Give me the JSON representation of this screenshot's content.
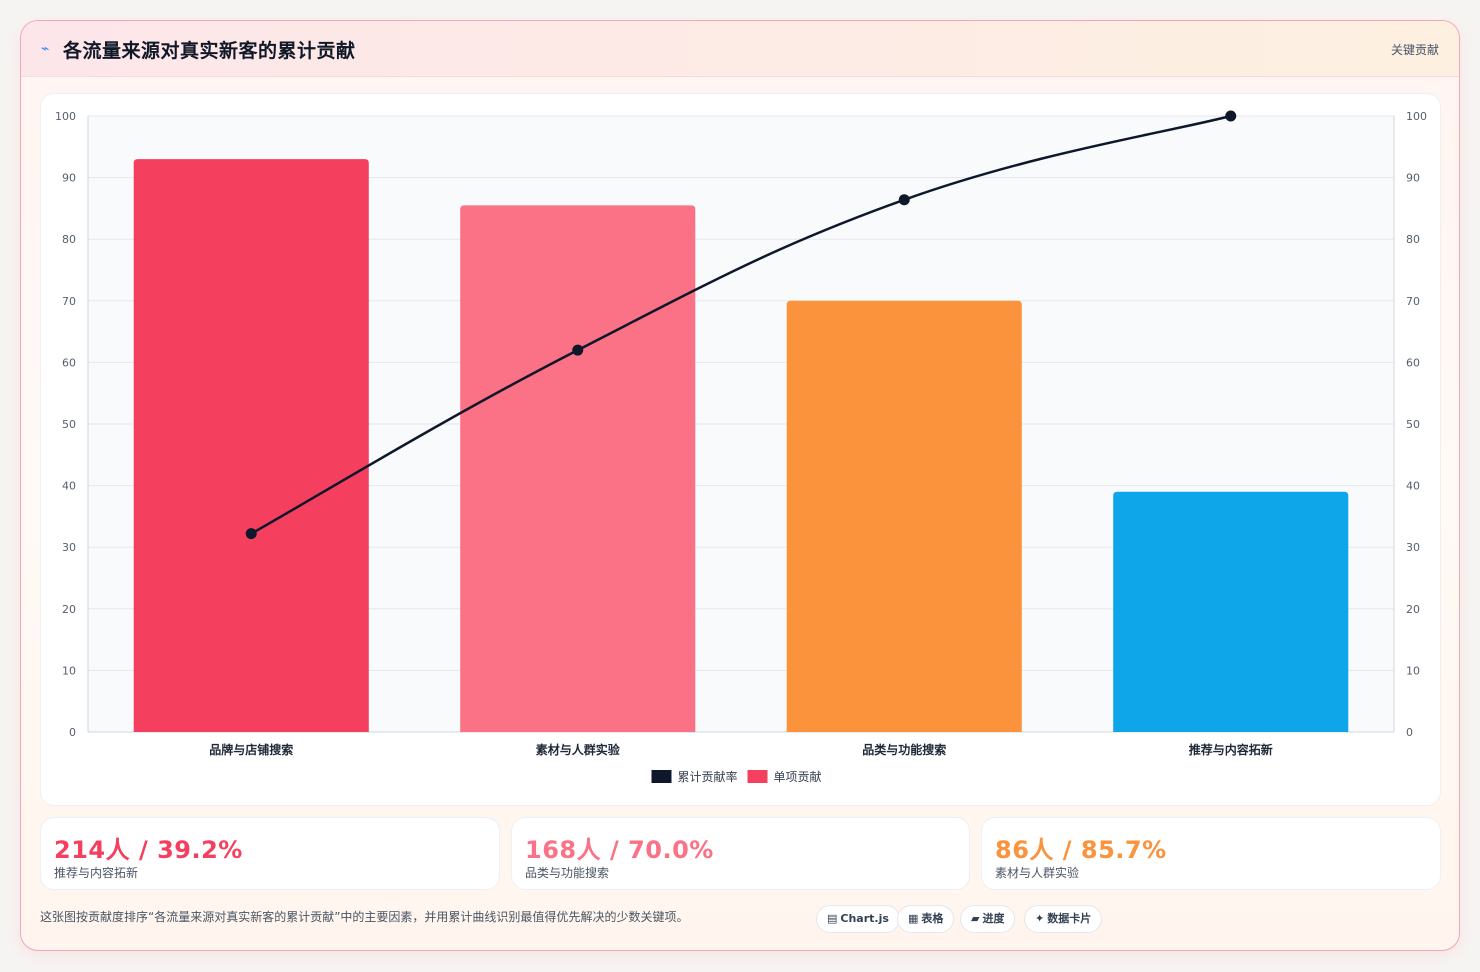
{
  "header": {
    "title": "各流量来源对真实新客的累计贡献",
    "icon": "trend-icon",
    "tag": "关键贡献"
  },
  "chart_data": {
    "type": "bar",
    "categories": [
      "品牌与店铺搜索",
      "素材与人群实验",
      "品类与功能搜索",
      "推荐与内容拓新"
    ],
    "series": [
      {
        "name": "单项贡献",
        "kind": "bar",
        "values": [
          93,
          85.5,
          70,
          39
        ],
        "colors": [
          "#f43f5e",
          "#fb7185",
          "#fb923c",
          "#0ea5e9"
        ]
      },
      {
        "name": "累计贡献率",
        "kind": "line",
        "values": [
          32.2,
          62,
          86.4,
          100
        ],
        "color": "#0f172a"
      }
    ],
    "ylim": [
      0,
      100
    ],
    "y_ticks": [
      0,
      10,
      20,
      30,
      40,
      50,
      60,
      70,
      80,
      90,
      100
    ],
    "y2lim": [
      0,
      100
    ],
    "y2_ticks": [
      0,
      10,
      20,
      30,
      40,
      50,
      60,
      70,
      80,
      90,
      100
    ],
    "legend": [
      {
        "label": "累计贡献率",
        "color": "#0f172a"
      },
      {
        "label": "单项贡献",
        "color": "#f43f5e"
      }
    ],
    "legend_position": "bottom",
    "grid": true
  },
  "stats": [
    {
      "value": "214人 / 39.2%",
      "label": "推荐与内容拓新",
      "color": "#f43f5e"
    },
    {
      "value": "168人 / 70.0%",
      "label": "品类与功能搜索",
      "color": "#fb7185"
    },
    {
      "value": "86人 / 85.7%",
      "label": "素材与人群实验",
      "color": "#fb923c"
    }
  ],
  "footer": {
    "note": "这张图按贡献度排序“各流量来源对真实新客的累计贡献”中的主要因素，并用累计曲线识别最值得优先解决的少数关键项。",
    "pills": [
      {
        "label": "Chart.js",
        "icon": "chart-icon",
        "glyph": "▤"
      },
      {
        "label": "表格",
        "icon": "table-icon",
        "glyph": "▦"
      },
      {
        "label": "进度",
        "icon": "progress-icon",
        "glyph": "▰"
      },
      {
        "label": "数据卡片",
        "icon": "sparkle-icon",
        "glyph": "✦"
      }
    ]
  }
}
